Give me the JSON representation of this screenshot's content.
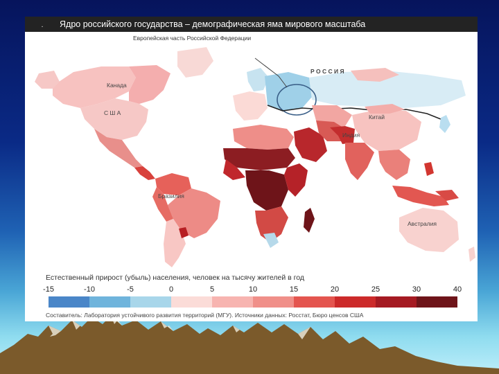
{
  "slide": {
    "sky_top": "#06145c",
    "sky_bottom": "#bdeefa",
    "mountains": "#7a5a2a"
  },
  "map": {
    "bullet": ".",
    "title": "Ядро российского государства – демографическая яма мирового масштаба",
    "callout_label": "Европейская часть Российской Федерации",
    "labels": {
      "canada": "Канада",
      "usa": "С Ш А",
      "russia": "Р О С С И Я",
      "china": "Китай",
      "india": "Индия",
      "brazil": "Бразилия",
      "australia": "Австралия"
    },
    "legend": {
      "caption": "Естественный прирост (убыль) населения, человек на тысячу жителей в год",
      "ticks": [
        "-15",
        "-10",
        "-5",
        "0",
        "5",
        "10",
        "15",
        "20",
        "25",
        "30",
        "40"
      ],
      "colors": [
        "#4a86c8",
        "#6fb4dc",
        "#a8d6ea",
        "#fbdcd8",
        "#f7b4b0",
        "#f08f89",
        "#e4554f",
        "#cc2a2a",
        "#a51a22",
        "#6e1419"
      ]
    },
    "source": "Составитель: Лаборатория устойчивого развития территорий (МГУ).   Источники данных: Росстат, Бюро ценсов США"
  }
}
